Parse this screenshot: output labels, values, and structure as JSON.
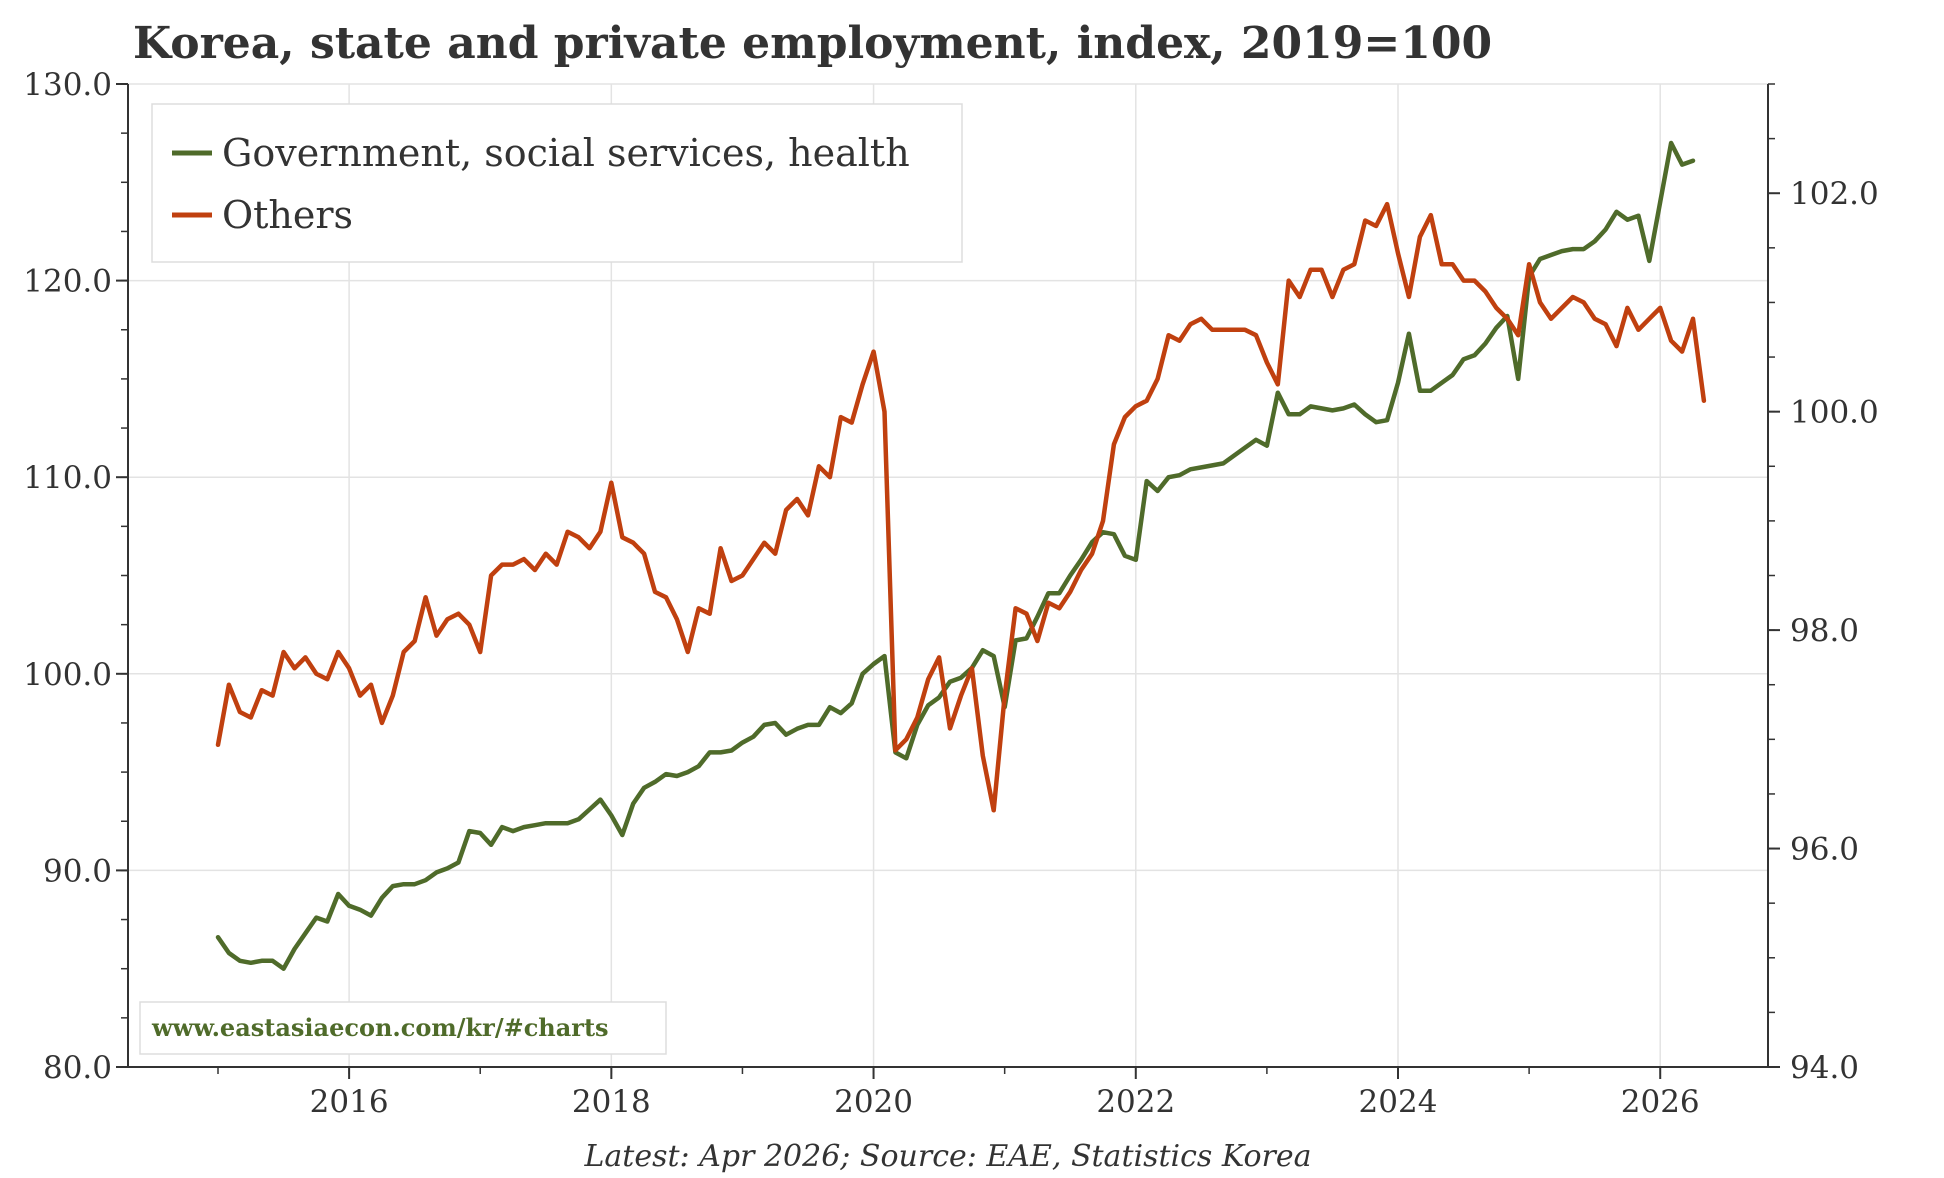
{
  "chart_data": {
    "type": "line",
    "title": "Korea, state and private employment, index, 2019=100",
    "source_note": "Latest: Apr 2026; Source: EAE, Statistics Korea",
    "watermark": "www.eastasiaecon.com/kr/#charts",
    "x_range": [
      "2015-01",
      "2026-04"
    ],
    "x_ticks": [
      "2016",
      "2018",
      "2020",
      "2022",
      "2024",
      "2026"
    ],
    "y_left": {
      "min": 80,
      "max": 130,
      "ticks": [
        "80.0",
        "90.0",
        "100.0",
        "110.0",
        "120.0",
        "130.0"
      ]
    },
    "y_right": {
      "min": 94,
      "max": 103,
      "ticks": [
        "94.0",
        "96.0",
        "98.0",
        "100.0",
        "102.0"
      ]
    },
    "grid": true,
    "legend_position": "top-left",
    "series": [
      {
        "name": "Government, social services, health",
        "color": "#4f6b2a",
        "axis": "left",
        "values": [
          86.6,
          85.8,
          85.4,
          85.3,
          85.4,
          85.4,
          85.0,
          86.0,
          86.8,
          87.6,
          87.4,
          88.8,
          88.2,
          88.0,
          87.7,
          88.6,
          89.2,
          89.3,
          89.3,
          89.5,
          89.9,
          90.1,
          90.4,
          92.0,
          91.9,
          91.3,
          92.2,
          92.0,
          92.2,
          92.3,
          92.4,
          92.4,
          92.4,
          92.6,
          93.1,
          93.6,
          92.8,
          91.8,
          93.4,
          94.2,
          94.5,
          94.9,
          94.8,
          95.0,
          95.3,
          96.0,
          96.0,
          96.1,
          96.5,
          96.8,
          97.4,
          97.5,
          96.9,
          97.2,
          97.4,
          97.4,
          98.3,
          98.0,
          98.5,
          100.0,
          100.5,
          100.9,
          96.0,
          95.7,
          97.4,
          98.4,
          98.8,
          99.6,
          99.8,
          100.3,
          101.2,
          100.9,
          98.3,
          101.7,
          101.8,
          102.9,
          104.1,
          104.1,
          105.0,
          105.8,
          106.7,
          107.2,
          107.1,
          106.0,
          105.8,
          109.8,
          109.3,
          110.0,
          110.1,
          110.4,
          110.5,
          110.6,
          110.7,
          111.1,
          111.5,
          111.9,
          111.6,
          114.3,
          113.2,
          113.2,
          113.6,
          113.5,
          113.4,
          113.5,
          113.7,
          113.2,
          112.8,
          112.9,
          114.8,
          117.3,
          114.4,
          114.4,
          114.8,
          115.2,
          116.0,
          116.2,
          116.8,
          117.6,
          118.2,
          115.0,
          120.2,
          121.1,
          121.3,
          121.5,
          121.6,
          121.6,
          122.0,
          122.6,
          123.5,
          123.1,
          123.3,
          121.0,
          124.0,
          127.0,
          125.9,
          126.1
        ]
      },
      {
        "name": "Others",
        "color": "#c0400f",
        "axis": "right",
        "values": [
          96.95,
          97.5,
          97.25,
          97.2,
          97.45,
          97.4,
          97.8,
          97.65,
          97.75,
          97.6,
          97.55,
          97.8,
          97.65,
          97.4,
          97.5,
          97.15,
          97.4,
          97.8,
          97.9,
          98.3,
          97.95,
          98.1,
          98.15,
          98.05,
          97.8,
          98.5,
          98.6,
          98.6,
          98.65,
          98.55,
          98.7,
          98.6,
          98.9,
          98.85,
          98.75,
          98.9,
          99.35,
          98.85,
          98.8,
          98.7,
          98.35,
          98.3,
          98.1,
          97.8,
          98.2,
          98.15,
          98.75,
          98.45,
          98.5,
          98.65,
          98.8,
          98.7,
          99.1,
          99.2,
          99.05,
          99.5,
          99.4,
          99.95,
          99.9,
          100.25,
          100.55,
          100.0,
          96.9,
          97.0,
          97.2,
          97.55,
          97.75,
          97.1,
          97.4,
          97.65,
          96.85,
          96.35,
          97.4,
          98.2,
          98.15,
          97.9,
          98.25,
          98.2,
          98.35,
          98.55,
          98.7,
          99.0,
          99.7,
          99.95,
          100.05,
          100.1,
          100.3,
          100.7,
          100.65,
          100.8,
          100.85,
          100.75,
          100.75,
          100.75,
          100.75,
          100.7,
          100.45,
          100.25,
          101.2,
          101.05,
          101.3,
          101.3,
          101.05,
          101.3,
          101.35,
          101.75,
          101.7,
          101.9,
          101.45,
          101.05,
          101.6,
          101.8,
          101.35,
          101.35,
          101.2,
          101.2,
          101.1,
          100.95,
          100.85,
          100.7,
          101.35,
          101.0,
          100.85,
          100.95,
          101.05,
          101.0,
          100.85,
          100.8,
          100.6,
          100.95,
          100.75,
          100.85,
          100.95,
          100.65,
          100.55,
          100.85,
          100.1
        ]
      }
    ]
  }
}
